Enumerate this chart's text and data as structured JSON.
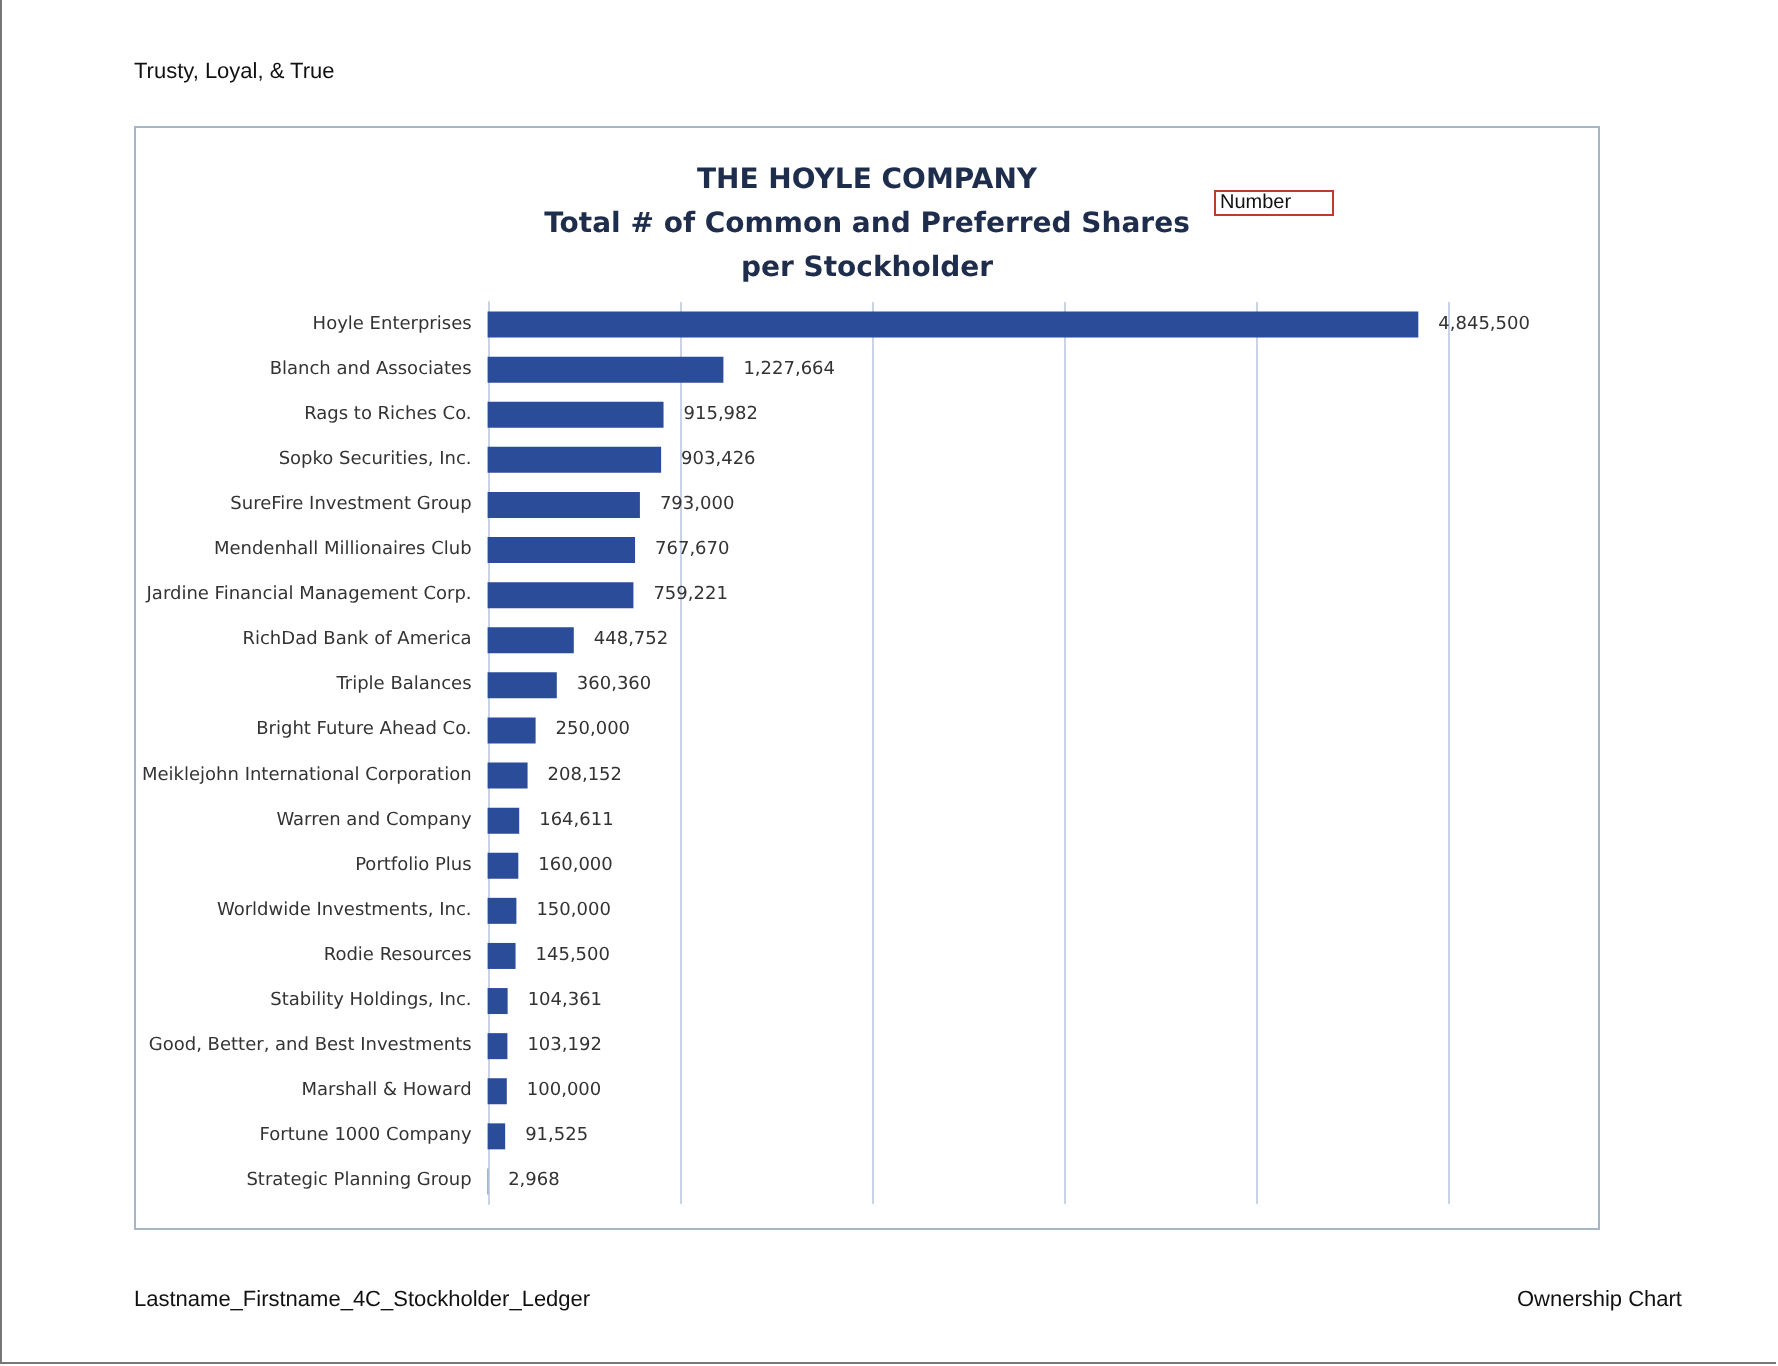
{
  "chart_data": {
    "type": "bar",
    "orientation": "horizontal",
    "title": "THE HOYLE COMPANY\nTotal # of Common and Preferred Shares\nper Stockholder",
    "categories": [
      "Hoyle Enterprises",
      "Blanch and Associates",
      "Rags to Riches Co.",
      "Sopko Securities, Inc.",
      "SureFire Investment Group",
      "Mendenhall Millionaires Club",
      "Jardine Financial Management Corp.",
      "RichDad Bank of America",
      "Triple Balances",
      "Bright Future Ahead Co.",
      "Meiklejohn International Corporation",
      "Warren and Company",
      "Portfolio Plus",
      "Worldwide Investments, Inc.",
      "Rodie Resources",
      "Stability Holdings, Inc.",
      "Good, Better, and Best Investments",
      "Marshall & Howard",
      "Fortune 1000 Company",
      "Strategic Planning Group"
    ],
    "values": [
      4845500,
      1227664,
      915982,
      903426,
      793000,
      767670,
      759221,
      448752,
      360360,
      250000,
      208152,
      164611,
      160000,
      150000,
      145500,
      104361,
      103192,
      100000,
      91525,
      2968
    ],
    "color": "#2b4c98",
    "value_labels": [
      "4,845,500",
      "1,227,664",
      "915,982",
      "903,426",
      "793,000",
      "767,670",
      "759,221",
      "448,752",
      "360,360",
      "250,000",
      "208,152",
      "164,611",
      "160,000",
      "150,000",
      "145,500",
      "104,361",
      "103,192",
      "100,000",
      "91,525",
      "2,968"
    ],
    "grid": "x",
    "annotations": [
      "Trusty, Loyal, & True",
      "Number",
      "Lastname_Firstname_4C_Stockholder_Ledger",
      "Ownership Chart"
    ]
  }
}
